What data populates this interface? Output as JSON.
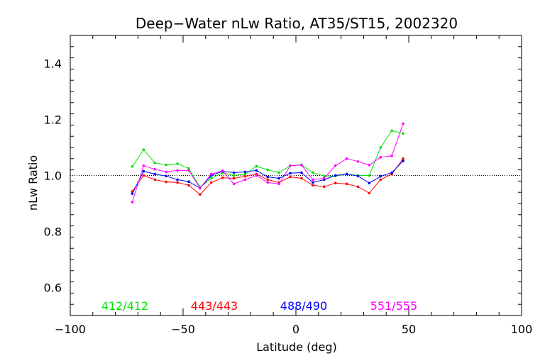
{
  "chart_data": {
    "type": "line",
    "title": "Deep−Water nLw Ratio, AT35/ST15, 2002320",
    "xlabel": "Latitude (deg)",
    "ylabel": "nLw Ratio",
    "xlim": [
      -100,
      100
    ],
    "ylim": [
      0.5,
      1.5
    ],
    "x_ticks": [
      -100,
      -50,
      0,
      50,
      100
    ],
    "x_tick_labels": [
      "−100",
      "−50",
      "0",
      "50",
      "100"
    ],
    "y_ticks": [
      0.6,
      0.8,
      1.0,
      1.2,
      1.4
    ],
    "y_tick_labels": [
      "0.6",
      "0.8",
      "1.0",
      "1.2",
      "1.4"
    ],
    "reference_line": 1.0,
    "grid": false,
    "legend_placement": "bottom",
    "series": [
      {
        "name": "412/412",
        "color": "#00e400",
        "x": [
          -72.5,
          -67.5,
          -62.5,
          -57.5,
          -52.5,
          -47.5,
          -42.5,
          -37.5,
          -32.5,
          -27.5,
          -22.5,
          -17.5,
          -12.5,
          -7.5,
          -2.5,
          2.5,
          7.5,
          12.5,
          17.5,
          22.5,
          27.5,
          32.5,
          37.5,
          42.5,
          47.5
        ],
        "y": [
          1.032,
          1.092,
          1.045,
          1.038,
          1.042,
          1.025,
          0.958,
          0.99,
          1.01,
          1.0,
          1.005,
          1.033,
          1.02,
          1.01,
          1.035,
          1.038,
          1.01,
          0.998,
          0.998,
          1.005,
          1.0,
          1.0,
          1.1,
          1.16,
          1.15
        ]
      },
      {
        "name": "443/443",
        "color": "#ff0000",
        "x": [
          -72.5,
          -67.5,
          -62.5,
          -57.5,
          -52.5,
          -47.5,
          -42.5,
          -37.5,
          -32.5,
          -27.5,
          -22.5,
          -17.5,
          -12.5,
          -7.5,
          -2.5,
          2.5,
          7.5,
          12.5,
          17.5,
          22.5,
          27.5,
          32.5,
          37.5,
          42.5,
          47.5
        ],
        "y": [
          0.943,
          1.0,
          0.985,
          0.977,
          0.975,
          0.965,
          0.932,
          0.975,
          0.992,
          0.99,
          0.997,
          1.005,
          0.985,
          0.975,
          0.995,
          0.99,
          0.965,
          0.96,
          0.973,
          0.97,
          0.96,
          0.937,
          0.985,
          1.005,
          1.06
        ]
      },
      {
        "name": "488/490",
        "color": "#0000ff",
        "x": [
          -72.5,
          -67.5,
          -62.5,
          -57.5,
          -52.5,
          -47.5,
          -42.5,
          -37.5,
          -32.5,
          -27.5,
          -22.5,
          -17.5,
          -12.5,
          -7.5,
          -2.5,
          2.5,
          7.5,
          12.5,
          17.5,
          22.5,
          27.5,
          32.5,
          37.5,
          42.5,
          47.5
        ],
        "y": [
          0.935,
          1.015,
          1.005,
          0.998,
          0.985,
          0.978,
          0.955,
          1.0,
          1.015,
          1.01,
          1.013,
          1.018,
          0.995,
          0.99,
          1.008,
          1.01,
          0.975,
          0.985,
          1.0,
          1.005,
          0.998,
          0.973,
          0.997,
          1.01,
          1.052
        ]
      },
      {
        "name": "551/555",
        "color": "#ff00ff",
        "x": [
          -72.5,
          -67.5,
          -62.5,
          -57.5,
          -52.5,
          -47.5,
          -42.5,
          -37.5,
          -32.5,
          -27.5,
          -22.5,
          -17.5,
          -12.5,
          -7.5,
          -2.5,
          2.5,
          7.5,
          12.5,
          17.5,
          22.5,
          27.5,
          32.5,
          37.5,
          42.5,
          47.5
        ],
        "y": [
          0.905,
          1.035,
          1.022,
          1.013,
          1.018,
          1.018,
          0.955,
          1.005,
          1.017,
          0.97,
          0.985,
          1.0,
          0.975,
          0.97,
          1.035,
          1.037,
          0.985,
          0.99,
          1.035,
          1.06,
          1.05,
          1.037,
          1.065,
          1.07,
          1.185
        ]
      }
    ]
  }
}
